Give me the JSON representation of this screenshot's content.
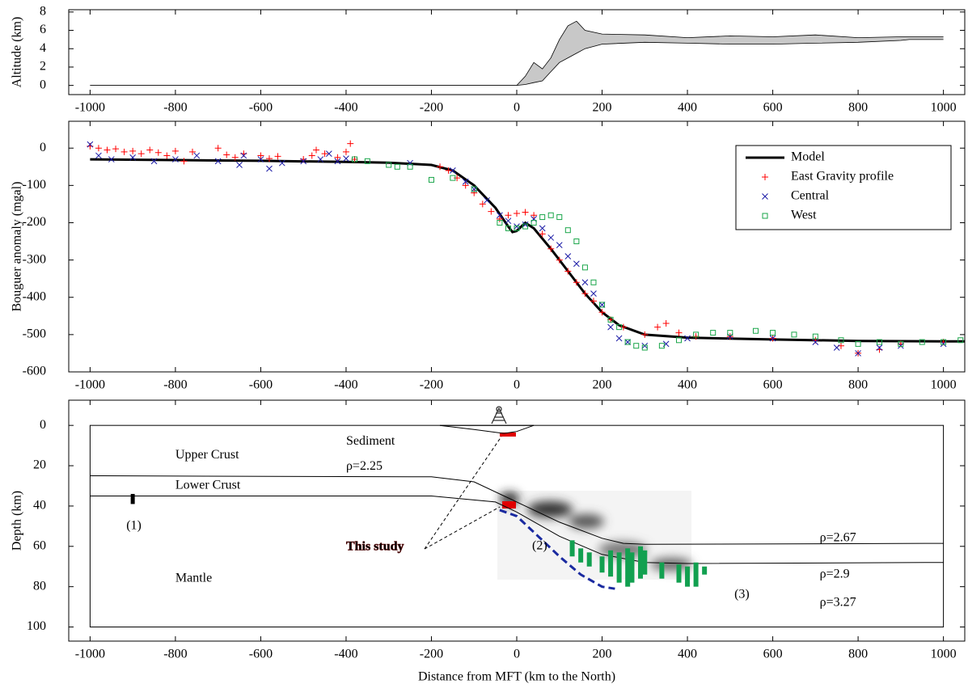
{
  "chart_data": [
    {
      "type": "area",
      "ylabel": "Altitude (km)",
      "xlim": [
        -1050,
        1050
      ],
      "xticks": [
        -1000,
        -800,
        -600,
        -400,
        -200,
        0,
        200,
        400,
        600,
        800,
        1000
      ],
      "ylim": [
        -1,
        8.25
      ],
      "yticks": [
        0,
        2,
        4,
        6,
        8
      ],
      "color": "#c8c8c8",
      "x": [
        -1000,
        -400,
        0,
        20,
        40,
        60,
        80,
        100,
        120,
        140,
        160,
        200,
        300,
        400,
        500,
        600,
        700,
        800,
        900,
        920,
        1000
      ],
      "upper": [
        0,
        0,
        0,
        1,
        2.5,
        1.8,
        3,
        5,
        6.5,
        7,
        6,
        5.6,
        5.5,
        5.2,
        5.4,
        5.3,
        5.5,
        5.2,
        5.3,
        5.3,
        5.3
      ],
      "lower": [
        0,
        0,
        0,
        0.1,
        0.3,
        0.5,
        1.5,
        2.5,
        3,
        3.5,
        4,
        4.5,
        4.7,
        4.6,
        4.5,
        4.5,
        4.6,
        4.7,
        4.9,
        5,
        5
      ]
    },
    {
      "type": "scatter",
      "ylabel": "Bouguer anomaly (mgal)",
      "xlim": [
        -1050,
        1050
      ],
      "xticks": [
        -1000,
        -800,
        -600,
        -400,
        -200,
        0,
        200,
        400,
        600,
        800,
        1000
      ],
      "ylim": [
        -600,
        72
      ],
      "yticks": [
        0,
        -100,
        -200,
        -300,
        -400,
        -500,
        -600
      ],
      "legend": "upper right",
      "series": [
        {
          "name": "Model",
          "color": "#000000",
          "mode": "line",
          "x": [
            -1000,
            -800,
            -600,
            -400,
            -300,
            -200,
            -150,
            -100,
            -50,
            -20,
            -10,
            0,
            20,
            40,
            80,
            120,
            160,
            200,
            240,
            300,
            400,
            600,
            800,
            1000,
            1050
          ],
          "values": [
            -30,
            -32,
            -34,
            -37,
            -39,
            -45,
            -60,
            -100,
            -160,
            -210,
            -225,
            -222,
            -200,
            -215,
            -270,
            -330,
            -390,
            -440,
            -475,
            -500,
            -508,
            -513,
            -517,
            -518,
            -518
          ]
        },
        {
          "name": "East Gravity profile",
          "color": "#ff0000",
          "mode": "plus",
          "x": [
            -1000,
            -980,
            -960,
            -940,
            -920,
            -900,
            -880,
            -860,
            -840,
            -820,
            -800,
            -780,
            -760,
            -700,
            -680,
            -660,
            -640,
            -600,
            -580,
            -560,
            -500,
            -480,
            -470,
            -450,
            -420,
            -400,
            -390,
            -380,
            -180,
            -160,
            -140,
            -120,
            -100,
            -80,
            -60,
            -40,
            -20,
            0,
            20,
            40,
            60,
            80,
            100,
            120,
            140,
            160,
            180,
            200,
            220,
            250,
            300,
            330,
            350,
            380,
            420,
            500,
            600,
            700,
            760,
            800,
            850,
            900,
            1000
          ],
          "values": [
            5,
            0,
            -5,
            -2,
            -10,
            -8,
            -15,
            -5,
            -12,
            -20,
            -8,
            -35,
            -10,
            0,
            -18,
            -25,
            -15,
            -20,
            -28,
            -22,
            -30,
            -20,
            -5,
            -15,
            -25,
            -10,
            12,
            -30,
            -50,
            -60,
            -80,
            -100,
            -120,
            -150,
            -170,
            -190,
            -180,
            -175,
            -172,
            -180,
            -230,
            -270,
            -300,
            -330,
            -360,
            -390,
            -410,
            -440,
            -460,
            -480,
            -500,
            -480,
            -470,
            -495,
            -505,
            -505,
            -510,
            -515,
            -530,
            -550,
            -540,
            -525,
            -520
          ]
        },
        {
          "name": "Central",
          "color": "#1a1aa6",
          "mode": "cross",
          "x": [
            -1000,
            -980,
            -950,
            -900,
            -850,
            -800,
            -750,
            -700,
            -650,
            -640,
            -600,
            -580,
            -550,
            -500,
            -460,
            -440,
            -420,
            -400,
            -250,
            -150,
            -120,
            -100,
            -70,
            -40,
            -20,
            0,
            20,
            40,
            60,
            80,
            100,
            120,
            140,
            160,
            180,
            200,
            220,
            240,
            260,
            300,
            350,
            400,
            500,
            600,
            700,
            750,
            800,
            850,
            900,
            1000
          ],
          "values": [
            10,
            -20,
            -30,
            -25,
            -35,
            -30,
            -20,
            -35,
            -45,
            -20,
            -30,
            -55,
            -40,
            -35,
            -30,
            -15,
            -35,
            -28,
            -40,
            -60,
            -90,
            -110,
            -140,
            -180,
            -195,
            -210,
            -205,
            -190,
            -215,
            -240,
            -260,
            -290,
            -310,
            -360,
            -390,
            -420,
            -480,
            -510,
            -520,
            -530,
            -525,
            -510,
            -505,
            -510,
            -520,
            -535,
            -550,
            -535,
            -530,
            -525
          ]
        },
        {
          "name": "West",
          "color": "#1aa64a",
          "mode": "square",
          "x": [
            -380,
            -350,
            -300,
            -280,
            -250,
            -200,
            -150,
            -100,
            -40,
            -20,
            0,
            20,
            40,
            60,
            80,
            100,
            120,
            140,
            160,
            180,
            200,
            220,
            240,
            260,
            280,
            300,
            340,
            380,
            420,
            460,
            500,
            560,
            600,
            650,
            700,
            760,
            800,
            850,
            900,
            950,
            1000,
            1040
          ],
          "values": [
            -30,
            -35,
            -45,
            -50,
            -50,
            -85,
            -80,
            -110,
            -200,
            -215,
            -215,
            -210,
            -200,
            -185,
            -180,
            -185,
            -220,
            -250,
            -320,
            -360,
            -420,
            -460,
            -480,
            -520,
            -530,
            -535,
            -530,
            -515,
            -500,
            -495,
            -495,
            -490,
            -495,
            -500,
            -505,
            -515,
            -525,
            -520,
            -525,
            -520,
            -520,
            -515
          ]
        }
      ]
    },
    {
      "type": "section",
      "ylabel": "Depth (km)",
      "xlabel": "Distance from MFT (km to the North)",
      "xlim": [
        -1050,
        1050
      ],
      "xticks": [
        -1000,
        -800,
        -600,
        -400,
        -200,
        0,
        200,
        400,
        600,
        800,
        1000
      ],
      "ylim": [
        -12.5,
        107
      ],
      "y_inverted": true,
      "yticks": [
        0,
        20,
        40,
        60,
        80,
        100
      ],
      "model_box": {
        "x": [
          -1000,
          1000
        ],
        "depth": [
          0,
          100
        ]
      },
      "lines": [
        {
          "x": [
            -1000,
            -200,
            -100,
            0,
            100,
            200,
            250,
            300,
            1000
          ],
          "values": [
            25,
            25.5,
            28,
            38,
            48,
            56,
            58.5,
            59,
            58.5
          ]
        },
        {
          "x": [
            -1000,
            -200,
            -50,
            0,
            100,
            200,
            300,
            400,
            1000
          ],
          "values": [
            35,
            35,
            38,
            43,
            55,
            64,
            68,
            68.5,
            68
          ]
        },
        {
          "x": [
            -180,
            40
          ],
          "values": [
            0,
            0
          ]
        },
        {
          "x": [
            -180,
            -100,
            -30,
            0,
            40
          ],
          "values": [
            0,
            2,
            4,
            3,
            0
          ]
        }
      ],
      "dashed": {
        "color": "#1a2aa0",
        "x": [
          -40,
          0,
          50,
          100,
          150,
          200,
          230
        ],
        "values": [
          42,
          45,
          55,
          65,
          74,
          80,
          81
        ]
      },
      "bars": {
        "color": "#12a050",
        "x": [
          130,
          150,
          170,
          200,
          220,
          240,
          260,
          270,
          290,
          300,
          340,
          380,
          400,
          420,
          440
        ],
        "top": [
          57,
          61,
          63,
          65,
          62,
          63,
          61,
          63,
          60,
          62,
          68,
          69,
          70,
          68,
          70
        ],
        "bottom": [
          65,
          68,
          70,
          73,
          75,
          78,
          80,
          78,
          76,
          74,
          76,
          78,
          80,
          80,
          74
        ]
      },
      "marker_1": {
        "x": -900,
        "top": 34,
        "bottom": 39
      },
      "annotations": [
        {
          "text": "Upper Crust",
          "x": -800,
          "y": 15,
          "color": "#000000"
        },
        {
          "text": "Lower Crust",
          "x": -800,
          "y": 30,
          "color": "#000000"
        },
        {
          "text": "Mantle",
          "x": -800,
          "y": 76,
          "color": "#000000"
        },
        {
          "text": "Sediment",
          "x": -400,
          "y": 8,
          "color": "#000000"
        },
        {
          "text": "ρ=2.25",
          "x": -400,
          "y": 20.5,
          "color": "#000000"
        },
        {
          "text": "(1)",
          "x": -915,
          "y": 50,
          "color": "#000000"
        },
        {
          "text": "This study",
          "x": -400,
          "y": 60.5,
          "color": "#d01010"
        },
        {
          "text": "(2)",
          "x": 36,
          "y": 60,
          "color": "#1a2aa0"
        },
        {
          "text": "(3)",
          "x": 510,
          "y": 84,
          "color": "#12a050"
        },
        {
          "text": "ρ=2.67",
          "x": 710,
          "y": 56,
          "color": "#000000"
        },
        {
          "text": "ρ=2.9",
          "x": 710,
          "y": 74,
          "color": "#000000"
        },
        {
          "text": "ρ=3.27",
          "x": 710,
          "y": 88,
          "color": "#000000"
        }
      ]
    }
  ]
}
